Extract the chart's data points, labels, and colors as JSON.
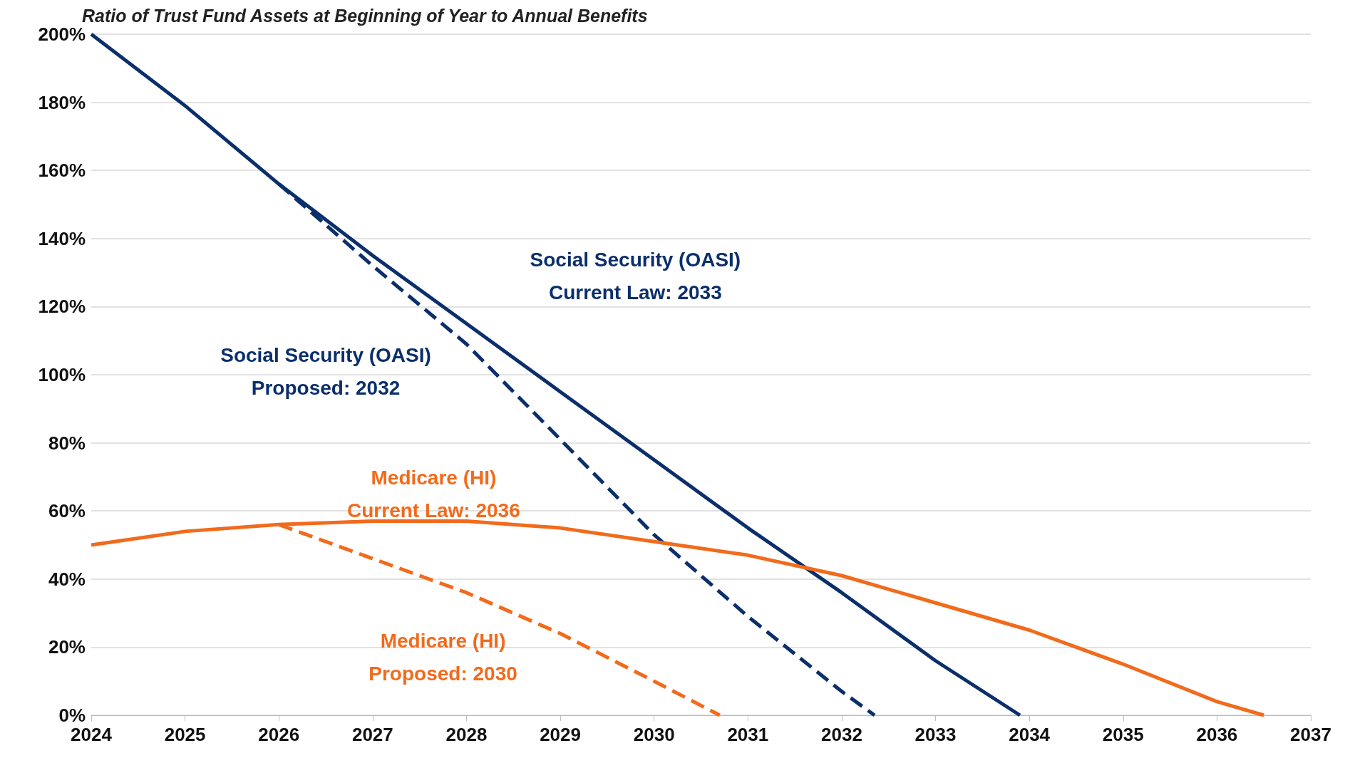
{
  "chart_data": {
    "type": "line",
    "title": "Ratio of Trust Fund Assets at Beginning of Year to Annual Benefits",
    "xlim": [
      2024,
      2037
    ],
    "xticks": [
      2024,
      2025,
      2026,
      2027,
      2028,
      2029,
      2030,
      2031,
      2032,
      2033,
      2034,
      2035,
      2036,
      2037
    ],
    "ylim": [
      0,
      200
    ],
    "yticks": [
      {
        "value": 0,
        "label": "0%"
      },
      {
        "value": 20,
        "label": "20%"
      },
      {
        "value": 40,
        "label": "40%"
      },
      {
        "value": 60,
        "label": "60%"
      },
      {
        "value": 80,
        "label": "80%"
      },
      {
        "value": 100,
        "label": "100%"
      },
      {
        "value": 120,
        "label": "120%"
      },
      {
        "value": 140,
        "label": "140%"
      },
      {
        "value": 160,
        "label": "160%"
      },
      {
        "value": 180,
        "label": "180%"
      },
      {
        "value": 200,
        "label": "200%"
      }
    ],
    "grid": "y",
    "marker": "none",
    "legend": false,
    "series": [
      {
        "name": "Social Security (OASI)\nCurrent Law: 2033",
        "color": "#0b2f6b",
        "line_style": "solid",
        "x": [
          2024,
          2025,
          2026,
          2027,
          2028,
          2029,
          2030,
          2031,
          2032,
          2033,
          2033.9
        ],
        "values": [
          200,
          179,
          156,
          135,
          115,
          95,
          75,
          55,
          36,
          16,
          0
        ]
      },
      {
        "name": "Social Security (OASI)\nProposed: 2032",
        "color": "#0b2f6b",
        "line_style": "dashed",
        "x": [
          2026,
          2027,
          2028,
          2029,
          2030,
          2031,
          2032,
          2032.35
        ],
        "values": [
          156,
          132,
          109,
          81,
          53,
          29,
          7,
          0
        ]
      },
      {
        "name": "Medicare (HI)\nCurrent Law: 2036",
        "color": "#f26a1b",
        "line_style": "solid",
        "x": [
          2024,
          2025,
          2026,
          2027,
          2028,
          2029,
          2030,
          2031,
          2032,
          2033,
          2034,
          2035,
          2036,
          2036.5
        ],
        "values": [
          50,
          54,
          56,
          57,
          57,
          55,
          51,
          47,
          41,
          33,
          25,
          15,
          4,
          0
        ]
      },
      {
        "name": "Medicare (HI)\nProposed: 2030",
        "color": "#f26a1b",
        "line_style": "dashed",
        "x": [
          2026,
          2027,
          2028,
          2029,
          2030,
          2030.7
        ],
        "values": [
          56,
          46,
          36,
          24,
          10,
          0
        ]
      }
    ]
  }
}
